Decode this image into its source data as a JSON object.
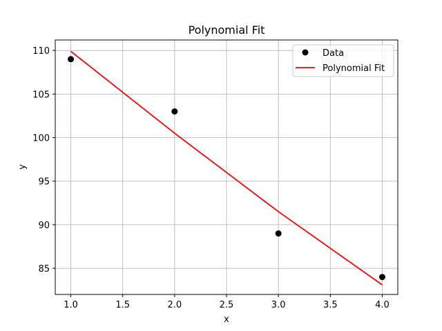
{
  "chart_data": {
    "type": "scatter",
    "title": "Polynomial Fit",
    "xlabel": "x",
    "ylabel": "y",
    "xlim": [
      0.85,
      4.15
    ],
    "ylim": [
      82.0,
      111.2
    ],
    "xticks": [
      1.0,
      1.5,
      2.0,
      2.5,
      3.0,
      3.5,
      4.0
    ],
    "xtick_labels": [
      "1.0",
      "1.5",
      "2.0",
      "2.5",
      "3.0",
      "3.5",
      "4.0"
    ],
    "yticks": [
      85,
      90,
      95,
      100,
      105,
      110
    ],
    "ytick_labels": [
      "85",
      "90",
      "95",
      "100",
      "105",
      "110"
    ],
    "grid": true,
    "legend_position": "top-right",
    "series": [
      {
        "name": "Data",
        "kind": "scatter",
        "color": "#000000",
        "x": [
          1,
          2,
          3,
          4
        ],
        "y": [
          109,
          103,
          89,
          84
        ]
      },
      {
        "name": "Polynomial Fit",
        "kind": "line",
        "color": "#ff0000",
        "x": [
          1.0,
          2.0,
          3.0,
          4.0
        ],
        "y": [
          109.9,
          100.5,
          91.5,
          83.1
        ]
      }
    ]
  }
}
